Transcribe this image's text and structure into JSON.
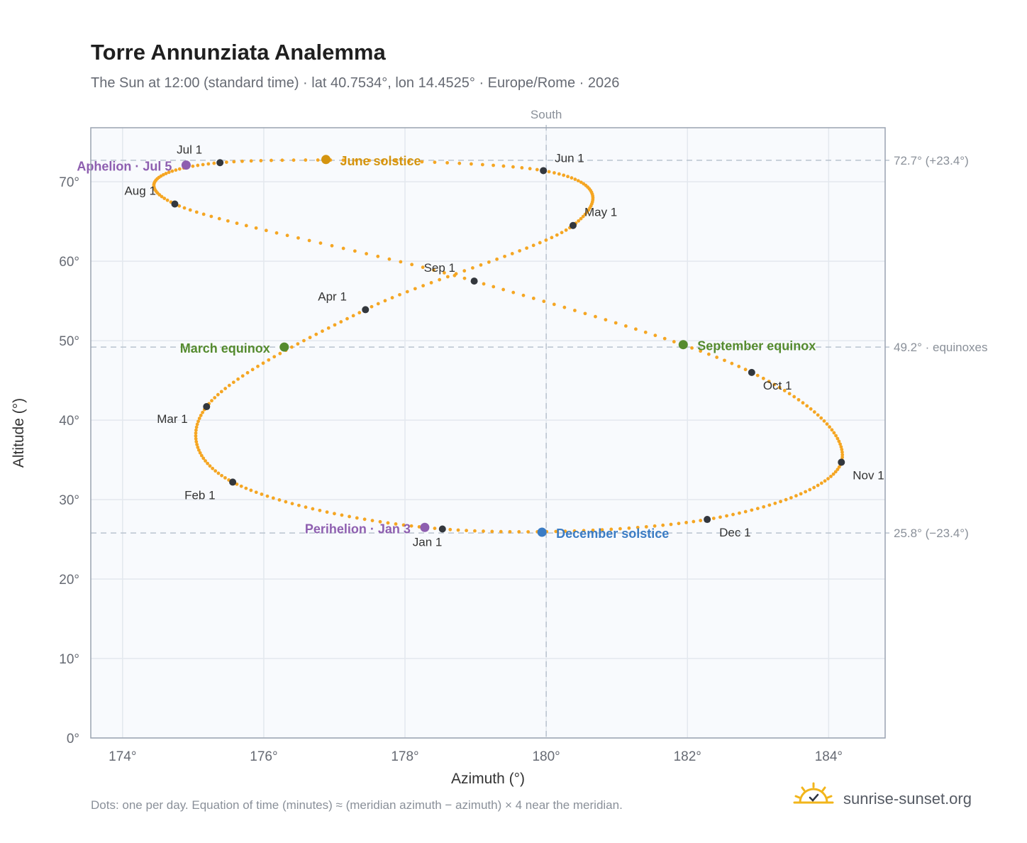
{
  "chart_data": {
    "type": "scatter",
    "title": "Torre Annunziata Analemma",
    "subtitle": "The Sun at 12:00 (standard time) · lat 40.7534°, lon 14.4525° · Europe/Rome · 2026",
    "xlabel": "Azimuth (°)",
    "ylabel": "Altitude (°)",
    "xlim": [
      173.55,
      184.8
    ],
    "ylim": [
      0,
      76.8
    ],
    "x_ticks": [
      {
        "value": 174,
        "label": "174°"
      },
      {
        "value": 176,
        "label": "176°"
      },
      {
        "value": 178,
        "label": "178°"
      },
      {
        "value": 180,
        "label": "180°"
      },
      {
        "value": 182,
        "label": "182°"
      },
      {
        "value": 184,
        "label": "184°"
      }
    ],
    "y_ticks": [
      {
        "value": 0,
        "label": "0°"
      },
      {
        "value": 10,
        "label": "10°"
      },
      {
        "value": 20,
        "label": "20°"
      },
      {
        "value": 30,
        "label": "30°"
      },
      {
        "value": 40,
        "label": "40°"
      },
      {
        "value": 50,
        "label": "50°"
      },
      {
        "value": 60,
        "label": "60°"
      },
      {
        "value": 70,
        "label": "70°"
      }
    ],
    "grid": true,
    "south_line": {
      "azimuth": 180,
      "label": "South"
    },
    "reference_lines": [
      {
        "altitude": 72.7,
        "label": "72.7° (+23.4°)"
      },
      {
        "altitude": 49.2,
        "label": "49.2° · equinoxes"
      },
      {
        "altitude": 25.8,
        "label": "25.8° (−23.4°)"
      }
    ],
    "month_markers": [
      {
        "label": "Jan 1",
        "azimuth": 178.53,
        "altitude": 26.3
      },
      {
        "label": "Feb 1",
        "azimuth": 175.56,
        "altitude": 32.2
      },
      {
        "label": "Mar 1",
        "azimuth": 175.19,
        "altitude": 41.7
      },
      {
        "label": "Apr 1",
        "azimuth": 177.44,
        "altitude": 53.9
      },
      {
        "label": "May 1",
        "azimuth": 180.38,
        "altitude": 64.5
      },
      {
        "label": "Jun 1",
        "azimuth": 179.96,
        "altitude": 71.4
      },
      {
        "label": "Jul 1",
        "azimuth": 175.38,
        "altitude": 72.4
      },
      {
        "label": "Aug 1",
        "azimuth": 174.74,
        "altitude": 67.2
      },
      {
        "label": "Sep 1",
        "azimuth": 178.98,
        "altitude": 57.5
      },
      {
        "label": "Oct 1",
        "azimuth": 182.91,
        "altitude": 46.0
      },
      {
        "label": "Nov 1",
        "azimuth": 184.18,
        "altitude": 34.7
      },
      {
        "label": "Dec 1",
        "azimuth": 182.28,
        "altitude": 27.5
      }
    ],
    "events": [
      {
        "label": "June solstice",
        "azimuth": 176.88,
        "altitude": 72.8,
        "color": "#d4940f"
      },
      {
        "label": "December solstice",
        "azimuth": 179.94,
        "altitude": 25.9,
        "color": "#3b7cc4"
      },
      {
        "label": "March equinox",
        "azimuth": 176.29,
        "altitude": 49.2,
        "color": "#558b2f"
      },
      {
        "label": "September equinox",
        "azimuth": 181.94,
        "altitude": 49.5,
        "color": "#558b2f"
      },
      {
        "label": "Aphelion · Jul 5",
        "azimuth": 174.9,
        "altitude": 72.1,
        "color": "#8e5fb0"
      },
      {
        "label": "Perihelion · Jan 3",
        "azimuth": 178.28,
        "altitude": 26.5,
        "color": "#8e5fb0"
      }
    ],
    "path_color": "#f5a623",
    "marker_color": "#33373d",
    "daily_dots": "one per day"
  },
  "footnote": "Dots: one per day. Equation of time (minutes) ≈ (meridian azimuth − azimuth) × 4 near the meridian.",
  "brand": {
    "name": "sunrise-sunset.org",
    "icon": "sunrise-check-icon"
  }
}
